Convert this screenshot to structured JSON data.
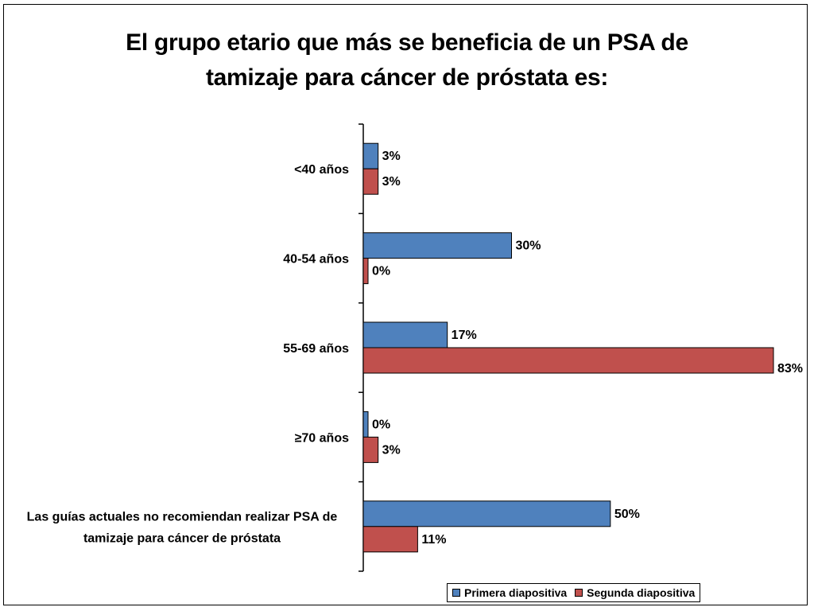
{
  "title_lines": [
    "El grupo etario que más se beneficia de un PSA de",
    "tamizaje para cáncer de próstata es:"
  ],
  "legend": {
    "series1": "Primera diapositiva",
    "series2": "Segunda diapositiva"
  },
  "colors": {
    "series1": "#4f81bd",
    "series2": "#c0504d",
    "outline": "#000000"
  },
  "chart_data": {
    "type": "bar",
    "orientation": "horizontal",
    "title": "El grupo etario que más se beneficia de un PSA de tamizaje para cáncer de próstata es:",
    "categories": [
      "<40 años",
      "40-54 años",
      "55-69 años",
      "≥70 años",
      "Las guías actuales no recomiendan realizar PSA de tamizaje para cáncer de próstata"
    ],
    "category_lines": [
      [
        "<40 años"
      ],
      [
        "40-54 años"
      ],
      [
        "55-69 años"
      ],
      [
        "≥70 años"
      ],
      [
        "Las guías actuales no recomiendan realizar PSA de",
        "tamizaje para cáncer de próstata"
      ]
    ],
    "series": [
      {
        "name": "Primera diapositiva",
        "values": [
          3,
          30,
          17,
          0,
          50
        ],
        "labels": [
          "3%",
          "30%",
          "17%",
          "0%",
          "50%"
        ]
      },
      {
        "name": "Segunda diapositiva",
        "values": [
          3,
          0,
          83,
          3,
          11
        ],
        "labels": [
          "3%",
          "0%",
          "83%",
          "3%",
          "11%"
        ]
      }
    ],
    "xlim": [
      0,
      83
    ],
    "unit": "%",
    "grid": false,
    "legend_position": "bottom-right"
  }
}
